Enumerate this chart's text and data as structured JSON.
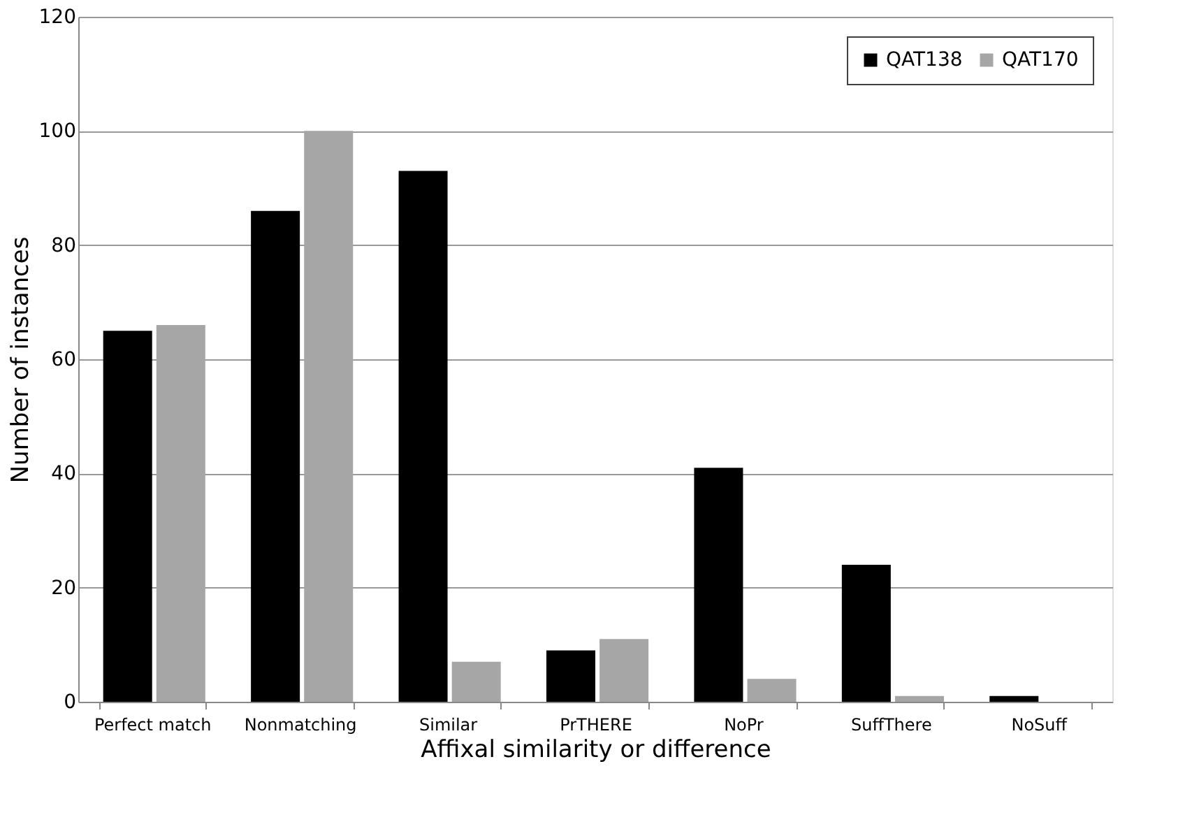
{
  "chart_data": {
    "type": "bar",
    "xlabel": "Affixal similarity or difference",
    "ylabel": "Number of instances",
    "categories": [
      "Perfect match",
      "Nonmatching",
      "Similar",
      "PrTHERE",
      "NoPr",
      "SuffThere",
      "NoSuff"
    ],
    "series": [
      {
        "name": "QAT138",
        "color": "#000000",
        "values": [
          65,
          86,
          93,
          9,
          41,
          24,
          1
        ]
      },
      {
        "name": "QAT170",
        "color": "#a6a6a6",
        "values": [
          66,
          100,
          7,
          11,
          4,
          1,
          0
        ]
      }
    ],
    "ylim": [
      0,
      120
    ],
    "yticks": [
      0,
      20,
      40,
      60,
      80,
      100,
      120
    ],
    "grid": "y",
    "legend": "top right"
  }
}
